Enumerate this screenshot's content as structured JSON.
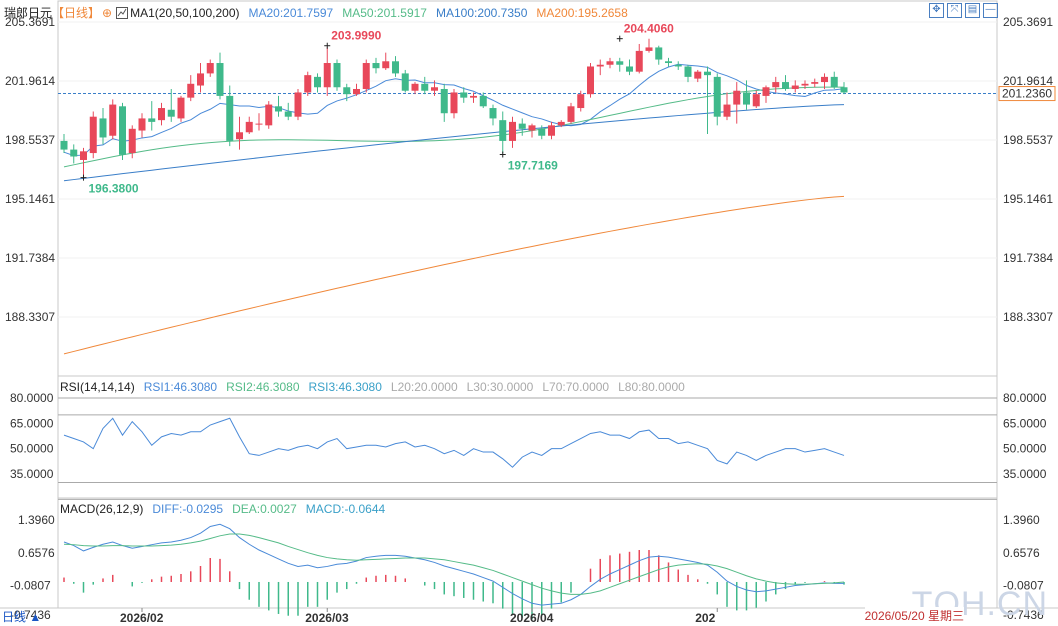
{
  "header": {
    "symbol": "瑞郎日元",
    "period_label": "【日线】",
    "ma_label": "MA1(20,50,100,200)",
    "ma20": "MA20:201.7597",
    "ma50": "MA50:201.5917",
    "ma100": "MA100:200.7350",
    "ma200": "MA200:195.2658",
    "colors": {
      "ma20": "#4a8ad8",
      "ma50": "#55bb88",
      "ma100": "#3a7ec8",
      "ma200": "#f0883a",
      "up": "#e8485a",
      "down": "#3fb98b"
    }
  },
  "toolbar": {
    "icons": [
      "expand-icon",
      "shrink-icon",
      "settings-icon",
      "minimize-icon"
    ]
  },
  "rsi": {
    "label": "RSI(14,14,14)",
    "rsi1": "RSI1:46.3080",
    "rsi2": "RSI2:46.3080",
    "rsi3": "RSI3:46.3080",
    "l20": "L20:20.0000",
    "l30": "L30:30.0000",
    "l70": "L70:70.0000",
    "l80": "L80:80.0000"
  },
  "macd": {
    "label": "MACD(26,12,9)",
    "diff": "DIFF:-0.0295",
    "dea": "DEA:0.0027",
    "macd": "MACD:-0.0644"
  },
  "footer": {
    "left_label": "日线 ▲",
    "date_tag": "2026/05/20 星期三",
    "watermark": "TQH.CN"
  },
  "chart_data": {
    "type": "candlestick",
    "price_axis": {
      "ticks": [
        205.3691,
        201.9614,
        198.5537,
        195.1461,
        191.7384,
        188.3307
      ],
      "tick_labels": [
        "205.3691",
        "201.9614",
        "198.5537",
        "195.1461",
        "191.7384",
        "188.3307"
      ],
      "range": [
        186.1,
        206.3
      ],
      "current_price": 201.236,
      "current_price_label": "201.2360"
    },
    "x_axis": {
      "labels": [
        {
          "text": "2026/02",
          "index": 8
        },
        {
          "text": "2026/03",
          "index": 27
        },
        {
          "text": "2026/04",
          "index": 48
        },
        {
          "text": "202",
          "index": 67
        }
      ]
    },
    "annotations": [
      {
        "text": "196.3800",
        "index": 2,
        "value": 196.38,
        "color": "#3fb98b"
      },
      {
        "text": "203.9990",
        "index": 27,
        "value": 203.999,
        "color": "#e8485a"
      },
      {
        "text": "197.7169",
        "index": 45,
        "value": 197.7169,
        "color": "#3fb98b"
      },
      {
        "text": "204.4060",
        "index": 57,
        "value": 204.406,
        "color": "#e8485a"
      }
    ],
    "candles": [
      [
        198.5,
        198.9,
        197.8,
        198.0
      ],
      [
        198.0,
        198.3,
        197.2,
        197.6
      ],
      [
        197.4,
        198.1,
        196.4,
        197.9
      ],
      [
        197.8,
        200.2,
        197.5,
        199.9
      ],
      [
        199.8,
        200.4,
        198.3,
        198.7
      ],
      [
        198.8,
        200.9,
        198.6,
        200.6
      ],
      [
        200.5,
        200.7,
        197.4,
        197.7
      ],
      [
        197.8,
        199.4,
        197.5,
        199.2
      ],
      [
        199.1,
        200.1,
        198.7,
        199.8
      ],
      [
        199.8,
        200.8,
        199.1,
        199.6
      ],
      [
        199.7,
        200.7,
        199.4,
        200.4
      ],
      [
        200.3,
        201.5,
        199.6,
        199.9
      ],
      [
        199.8,
        201.1,
        199.6,
        201.0
      ],
      [
        201.0,
        202.3,
        200.8,
        201.8
      ],
      [
        201.7,
        203.0,
        201.3,
        202.4
      ],
      [
        202.4,
        203.2,
        202.2,
        203.0
      ],
      [
        203.0,
        203.6,
        200.9,
        201.1
      ],
      [
        201.1,
        201.7,
        198.2,
        198.5
      ],
      [
        198.6,
        199.9,
        198.0,
        199.0
      ],
      [
        199.0,
        199.9,
        198.9,
        199.6
      ],
      [
        199.5,
        200.1,
        199.1,
        199.5
      ],
      [
        199.4,
        200.8,
        199.2,
        200.6
      ],
      [
        200.5,
        201.1,
        199.9,
        200.2
      ],
      [
        200.2,
        200.7,
        199.7,
        199.9
      ],
      [
        199.9,
        201.5,
        199.7,
        201.3
      ],
      [
        201.3,
        202.5,
        201.1,
        202.3
      ],
      [
        202.2,
        202.4,
        201.3,
        201.6
      ],
      [
        201.6,
        203.9,
        201.1,
        203.0
      ],
      [
        203.0,
        203.2,
        201.4,
        201.6
      ],
      [
        201.6,
        201.8,
        200.8,
        201.2
      ],
      [
        201.2,
        201.8,
        201.1,
        201.5
      ],
      [
        201.5,
        203.2,
        201.3,
        203.0
      ],
      [
        203.0,
        203.3,
        202.4,
        202.7
      ],
      [
        202.7,
        203.6,
        202.6,
        203.1
      ],
      [
        203.1,
        203.4,
        202.2,
        202.4
      ],
      [
        202.4,
        202.6,
        201.3,
        201.4
      ],
      [
        201.4,
        201.9,
        201.2,
        201.8
      ],
      [
        201.8,
        202.2,
        201.2,
        201.4
      ],
      [
        201.4,
        202.0,
        201.1,
        201.6
      ],
      [
        201.5,
        201.8,
        199.6,
        200.1
      ],
      [
        200.1,
        201.5,
        199.8,
        201.3
      ],
      [
        201.3,
        201.6,
        200.7,
        201.0
      ],
      [
        201.0,
        201.3,
        200.7,
        201.1
      ],
      [
        201.1,
        201.3,
        200.4,
        200.5
      ],
      [
        200.4,
        200.6,
        199.4,
        199.8
      ],
      [
        199.7,
        200.2,
        197.8,
        198.5
      ],
      [
        198.5,
        199.9,
        198.1,
        199.6
      ],
      [
        199.5,
        199.8,
        198.8,
        199.2
      ],
      [
        199.1,
        199.5,
        198.7,
        199.4
      ],
      [
        199.2,
        199.4,
        198.6,
        198.8
      ],
      [
        198.8,
        199.6,
        198.6,
        199.4
      ],
      [
        199.4,
        199.7,
        199.3,
        199.6
      ],
      [
        199.6,
        200.7,
        199.5,
        200.5
      ],
      [
        200.4,
        201.4,
        200.2,
        201.2
      ],
      [
        201.2,
        203.0,
        201.0,
        202.8
      ],
      [
        202.8,
        203.2,
        202.3,
        202.9
      ],
      [
        202.9,
        203.3,
        202.7,
        203.1
      ],
      [
        203.1,
        203.3,
        202.5,
        202.9
      ],
      [
        202.8,
        203.2,
        202.3,
        202.5
      ],
      [
        202.5,
        204.1,
        202.4,
        203.7
      ],
      [
        203.7,
        204.4,
        203.6,
        203.9
      ],
      [
        203.9,
        204.0,
        202.9,
        203.2
      ],
      [
        203.1,
        203.3,
        202.8,
        203.0
      ],
      [
        202.9,
        203.1,
        202.6,
        202.8
      ],
      [
        202.8,
        202.9,
        201.9,
        202.2
      ],
      [
        202.1,
        202.6,
        201.9,
        202.5
      ],
      [
        202.5,
        202.8,
        198.9,
        202.3
      ],
      [
        202.2,
        202.4,
        199.4,
        199.9
      ],
      [
        199.9,
        201.3,
        199.7,
        200.6
      ],
      [
        200.6,
        201.9,
        199.5,
        201.4
      ],
      [
        201.3,
        202.0,
        200.3,
        200.6
      ],
      [
        200.5,
        201.4,
        200.4,
        201.2
      ],
      [
        201.1,
        201.7,
        200.7,
        201.6
      ],
      [
        201.6,
        202.2,
        201.3,
        201.9
      ],
      [
        201.9,
        202.3,
        201.4,
        201.5
      ],
      [
        201.5,
        202.0,
        201.3,
        201.7
      ],
      [
        201.7,
        202.0,
        201.5,
        201.8
      ],
      [
        201.8,
        202.1,
        201.6,
        201.9
      ],
      [
        201.9,
        202.4,
        201.5,
        202.2
      ],
      [
        202.2,
        202.5,
        201.5,
        201.6
      ],
      [
        201.6,
        201.9,
        201.2,
        201.3
      ]
    ],
    "ma100_endpoints": [
      196.2,
      200.6
    ],
    "ma200_endpoints": [
      186.2,
      195.3
    ],
    "rsi_axis": {
      "ticks": [
        80,
        65,
        50,
        35
      ],
      "tick_labels": [
        "80.0000",
        "65.0000",
        "50.0000",
        "35.0000"
      ],
      "range": [
        26,
        84
      ],
      "lines": [
        80,
        70,
        30,
        20
      ]
    },
    "rsi_values": [
      58,
      56,
      54,
      50,
      62,
      68,
      58,
      66,
      60,
      52,
      57,
      59,
      58,
      60,
      60,
      64,
      66,
      68,
      57,
      47,
      46,
      48,
      50,
      49,
      51,
      52,
      50,
      54,
      56,
      50,
      51,
      52,
      52,
      51,
      53,
      54,
      51,
      52,
      50,
      47,
      49,
      46,
      50,
      48,
      48,
      44,
      39,
      45,
      48,
      46,
      50,
      50,
      53,
      56,
      59,
      60,
      58,
      58,
      56,
      60,
      61,
      56,
      56,
      53,
      54,
      52,
      50,
      43,
      41,
      48,
      46,
      43,
      46,
      48,
      50,
      50,
      48,
      49,
      50,
      48,
      46
    ],
    "macd_axis": {
      "ticks": [
        1.396,
        0.6576,
        -0.0807,
        -0.7436
      ],
      "tick_labels": [
        "1.3960",
        "0.6576",
        "-0.0807",
        "-0.7436"
      ],
      "range": [
        -1.05,
        1.75
      ]
    },
    "macd_diff": [
      0.9,
      0.82,
      0.7,
      0.78,
      0.85,
      0.9,
      0.82,
      0.76,
      0.8,
      0.84,
      0.88,
      0.9,
      0.94,
      1.0,
      1.1,
      1.25,
      1.3,
      1.2,
      1.0,
      0.85,
      0.72,
      0.62,
      0.52,
      0.42,
      0.35,
      0.38,
      0.32,
      0.35,
      0.4,
      0.42,
      0.47,
      0.55,
      0.58,
      0.6,
      0.6,
      0.58,
      0.54,
      0.5,
      0.44,
      0.36,
      0.3,
      0.24,
      0.18,
      0.1,
      0.02,
      -0.12,
      -0.26,
      -0.38,
      -0.48,
      -0.52,
      -0.5,
      -0.48,
      -0.4,
      -0.28,
      -0.1,
      0.06,
      0.18,
      0.28,
      0.38,
      0.48,
      0.56,
      0.58,
      0.56,
      0.52,
      0.48,
      0.44,
      0.38,
      0.22,
      0.02,
      -0.1,
      -0.18,
      -0.22,
      -0.2,
      -0.16,
      -0.12,
      -0.08,
      -0.06,
      -0.04,
      -0.02,
      -0.03,
      -0.03
    ],
    "macd_dea": [
      0.85,
      0.84,
      0.82,
      0.81,
      0.81,
      0.82,
      0.82,
      0.81,
      0.81,
      0.81,
      0.82,
      0.83,
      0.85,
      0.88,
      0.92,
      0.98,
      1.04,
      1.08,
      1.08,
      1.05,
      1.0,
      0.94,
      0.88,
      0.8,
      0.73,
      0.66,
      0.6,
      0.55,
      0.52,
      0.5,
      0.49,
      0.5,
      0.51,
      0.52,
      0.53,
      0.54,
      0.54,
      0.54,
      0.52,
      0.5,
      0.46,
      0.42,
      0.38,
      0.32,
      0.26,
      0.18,
      0.1,
      0.02,
      -0.06,
      -0.14,
      -0.2,
      -0.25,
      -0.28,
      -0.28,
      -0.25,
      -0.2,
      -0.12,
      -0.04,
      0.04,
      0.12,
      0.2,
      0.28,
      0.34,
      0.38,
      0.4,
      0.41,
      0.4,
      0.36,
      0.3,
      0.22,
      0.14,
      0.07,
      0.02,
      -0.02,
      -0.04,
      -0.05,
      -0.05,
      -0.04,
      -0.03,
      -0.02,
      0.0
    ]
  }
}
